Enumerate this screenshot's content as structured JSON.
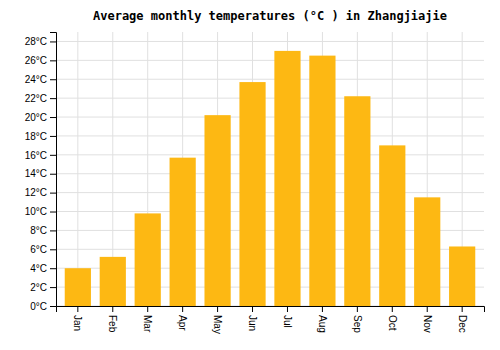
{
  "chart_data": {
    "type": "bar",
    "title": "Average monthly temperatures (°C ) in Zhangjiajie",
    "categories": [
      "Jan",
      "Feb",
      "Mar",
      "Apr",
      "May",
      "Jun",
      "Jul",
      "Aug",
      "Sep",
      "Oct",
      "Nov",
      "Dec"
    ],
    "values": [
      4.0,
      5.2,
      9.8,
      15.7,
      20.2,
      23.7,
      27.0,
      26.5,
      22.2,
      17.0,
      11.5,
      6.3
    ],
    "color": "#FDB813",
    "ylim": [
      0,
      29
    ],
    "yticks": [
      {
        "value": 0,
        "label": "0°C"
      },
      {
        "value": 2,
        "label": "2°C"
      },
      {
        "value": 4,
        "label": "4°C"
      },
      {
        "value": 6,
        "label": "6°C"
      },
      {
        "value": 8,
        "label": "8°C"
      },
      {
        "value": 10,
        "label": "10°C"
      },
      {
        "value": 12,
        "label": "12°C"
      },
      {
        "value": 14,
        "label": "14°C"
      },
      {
        "value": 16,
        "label": "16°C"
      },
      {
        "value": 18,
        "label": "18°C"
      },
      {
        "value": 20,
        "label": "20°C"
      },
      {
        "value": 22,
        "label": "22°C"
      },
      {
        "value": 24,
        "label": "24°C"
      },
      {
        "value": 26,
        "label": "26°C"
      },
      {
        "value": 28,
        "label": "28°C"
      }
    ],
    "grid": true
  }
}
